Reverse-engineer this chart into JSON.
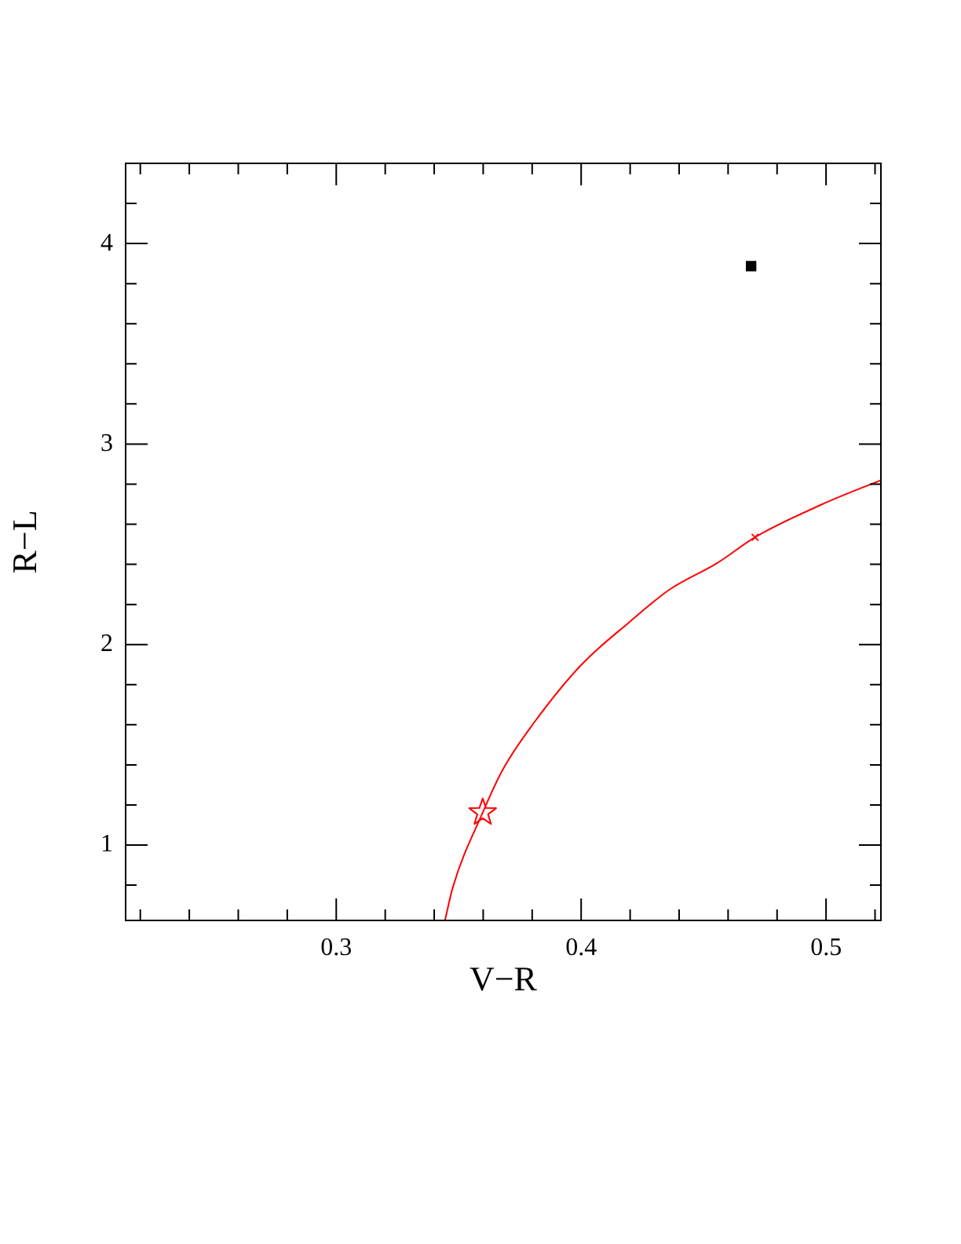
{
  "chart_data": {
    "type": "line",
    "xlabel": "V−R",
    "ylabel": "R−L",
    "grid": false,
    "legend": false,
    "xlim": [
      0.214,
      0.5224
    ],
    "ylim": [
      0.624,
      4.4
    ],
    "xticks": [
      {
        "value": 0.22,
        "label": null
      },
      {
        "value": 0.24,
        "label": null
      },
      {
        "value": 0.26,
        "label": null
      },
      {
        "value": 0.28,
        "label": null
      },
      {
        "value": 0.3,
        "label": "0.3"
      },
      {
        "value": 0.32,
        "label": null
      },
      {
        "value": 0.34,
        "label": null
      },
      {
        "value": 0.36,
        "label": null
      },
      {
        "value": 0.38,
        "label": null
      },
      {
        "value": 0.4,
        "label": "0.4"
      },
      {
        "value": 0.42,
        "label": null
      },
      {
        "value": 0.44,
        "label": null
      },
      {
        "value": 0.46,
        "label": null
      },
      {
        "value": 0.48,
        "label": null
      },
      {
        "value": 0.5,
        "label": "0.5"
      },
      {
        "value": 0.52,
        "label": null
      }
    ],
    "yticks": [
      {
        "value": 0.8,
        "label": null
      },
      1,
      {
        "value": 1.2,
        "label": null
      },
      {
        "value": 1.4,
        "label": null
      },
      {
        "value": 1.6,
        "label": null
      },
      {
        "value": 1.8,
        "label": null
      },
      2,
      {
        "value": 2.2,
        "label": null
      },
      {
        "value": 2.4,
        "label": null
      },
      {
        "value": 2.6,
        "label": null
      },
      {
        "value": 2.8,
        "label": null
      },
      3,
      {
        "value": 3.2,
        "label": null
      },
      {
        "value": 3.4,
        "label": null
      },
      {
        "value": 3.6,
        "label": null
      },
      {
        "value": 3.8,
        "label": null
      },
      4,
      {
        "value": 4.2,
        "label": null
      }
    ],
    "series": [
      {
        "type": "line",
        "color": "#ff0000",
        "marker": "none",
        "x": [
          0.3444,
          0.3476,
          0.3598,
          0.368,
          0.3808,
          0.4,
          0.4192,
          0.4363,
          0.4556,
          0.471,
          0.4983,
          0.5224
        ],
        "values": [
          0.624,
          0.789,
          1.162,
          1.376,
          1.611,
          1.898,
          2.107,
          2.276,
          2.407,
          2.535,
          2.699,
          2.82
        ]
      },
      {
        "type": "scatter",
        "color": "#ff0000",
        "marker": "star",
        "x": [
          0.3598
        ],
        "values": [
          1.162
        ]
      },
      {
        "type": "scatter",
        "color": "#ff0000",
        "marker": "cross",
        "x": [
          0.471
        ],
        "values": [
          2.535
        ]
      },
      {
        "type": "scatter",
        "color": "#000000",
        "marker": "square",
        "x": [
          0.4694
        ],
        "values": [
          3.887
        ]
      }
    ]
  }
}
